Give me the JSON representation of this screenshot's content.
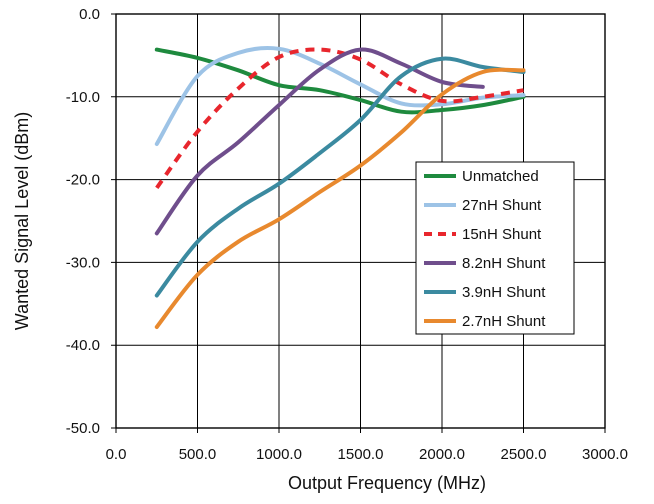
{
  "chart_data": {
    "type": "line",
    "title": "",
    "xlabel": "Output Frequency (MHz)",
    "ylabel": "Wanted Signal Level (dBm)",
    "xlim": [
      0,
      3000
    ],
    "ylim": [
      -50,
      0
    ],
    "x_ticks": [
      "0.0",
      "500.0",
      "1000.0",
      "1500.0",
      "2000.0",
      "2500.0",
      "3000.0"
    ],
    "y_ticks": [
      "0.0",
      "-10.0",
      "-20.0",
      "-30.0",
      "-40.0",
      "-50.0"
    ],
    "x_tick_values": [
      0,
      500,
      1000,
      1500,
      2000,
      2500,
      3000
    ],
    "y_tick_values": [
      0,
      -10,
      -20,
      -30,
      -40,
      -50
    ],
    "grid": true,
    "legend_position": "center-right",
    "series": [
      {
        "name": "Unmatched",
        "color": "#1e8a3e",
        "dash": "solid",
        "points": [
          [
            250,
            -4.3
          ],
          [
            500,
            -5.3
          ],
          [
            750,
            -6.8
          ],
          [
            1000,
            -8.6
          ],
          [
            1250,
            -9.2
          ],
          [
            1500,
            -10.4
          ],
          [
            1750,
            -11.8
          ],
          [
            2000,
            -11.6
          ],
          [
            2250,
            -11.0
          ],
          [
            2500,
            -10.0
          ]
        ]
      },
      {
        "name": "27nH Shunt",
        "color": "#9dc3e6",
        "dash": "solid",
        "points": [
          [
            250,
            -15.7
          ],
          [
            500,
            -7.5
          ],
          [
            750,
            -4.7
          ],
          [
            1000,
            -4.2
          ],
          [
            1250,
            -6.0
          ],
          [
            1500,
            -8.5
          ],
          [
            1750,
            -10.8
          ],
          [
            2000,
            -10.9
          ],
          [
            2250,
            -10.1
          ],
          [
            2500,
            -9.8
          ]
        ]
      },
      {
        "name": "15nH Shunt",
        "color": "#e8262d",
        "dash": "dashed",
        "points": [
          [
            250,
            -21.0
          ],
          [
            500,
            -14.2
          ],
          [
            750,
            -9.0
          ],
          [
            1000,
            -5.2
          ],
          [
            1250,
            -4.3
          ],
          [
            1500,
            -5.5
          ],
          [
            1750,
            -8.5
          ],
          [
            2000,
            -10.5
          ],
          [
            2250,
            -10.0
          ],
          [
            2500,
            -9.2
          ]
        ]
      },
      {
        "name": "8.2nH Shunt",
        "color": "#6f4e8c",
        "dash": "solid",
        "points": [
          [
            250,
            -26.5
          ],
          [
            500,
            -19.5
          ],
          [
            750,
            -15.5
          ],
          [
            1000,
            -11.0
          ],
          [
            1250,
            -6.7
          ],
          [
            1500,
            -4.3
          ],
          [
            1750,
            -6.0
          ],
          [
            2000,
            -8.2
          ],
          [
            2250,
            -8.8
          ]
        ]
      },
      {
        "name": "3.9nH Shunt",
        "color": "#3b8aa0",
        "dash": "solid",
        "points": [
          [
            250,
            -34.0
          ],
          [
            500,
            -27.5
          ],
          [
            750,
            -23.5
          ],
          [
            1000,
            -20.5
          ],
          [
            1250,
            -16.8
          ],
          [
            1500,
            -12.8
          ],
          [
            1750,
            -7.5
          ],
          [
            2000,
            -5.4
          ],
          [
            2250,
            -6.4
          ],
          [
            2500,
            -7.0
          ]
        ]
      },
      {
        "name": "2.7nH Shunt",
        "color": "#e8892e",
        "dash": "solid",
        "points": [
          [
            250,
            -37.8
          ],
          [
            500,
            -31.5
          ],
          [
            750,
            -27.5
          ],
          [
            1000,
            -24.8
          ],
          [
            1250,
            -21.5
          ],
          [
            1500,
            -18.3
          ],
          [
            1750,
            -14.3
          ],
          [
            2000,
            -9.7
          ],
          [
            2250,
            -7.0
          ],
          [
            2500,
            -6.8
          ]
        ]
      }
    ]
  }
}
